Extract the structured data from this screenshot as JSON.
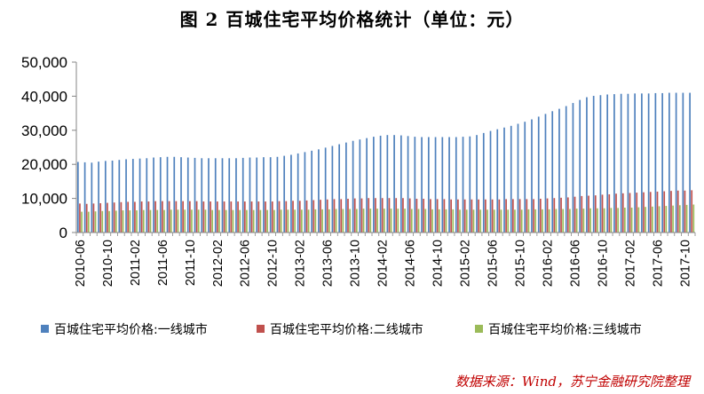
{
  "title": "图 2  百城住宅平均价格统计（单位：元）",
  "source": "数据来源：Wind，苏宁金融研究院整理",
  "chart_data": {
    "type": "bar",
    "ylim": [
      0,
      50000
    ],
    "yticks": [
      0,
      10000,
      20000,
      30000,
      40000,
      50000
    ],
    "ytick_labels": [
      "0",
      "10,000",
      "20,000",
      "30,000",
      "40,000",
      "50,000"
    ],
    "grid": false,
    "legend_position": "bottom",
    "categories": [
      "2010-06",
      "2010-07",
      "2010-08",
      "2010-09",
      "2010-10",
      "2010-11",
      "2010-12",
      "2011-01",
      "2011-02",
      "2011-03",
      "2011-04",
      "2011-05",
      "2011-06",
      "2011-07",
      "2011-08",
      "2011-09",
      "2011-10",
      "2011-11",
      "2011-12",
      "2012-01",
      "2012-02",
      "2012-03",
      "2012-04",
      "2012-05",
      "2012-06",
      "2012-07",
      "2012-08",
      "2012-09",
      "2012-10",
      "2012-11",
      "2012-12",
      "2013-01",
      "2013-02",
      "2013-03",
      "2013-04",
      "2013-05",
      "2013-06",
      "2013-07",
      "2013-08",
      "2013-09",
      "2013-10",
      "2013-11",
      "2013-12",
      "2014-01",
      "2014-02",
      "2014-03",
      "2014-04",
      "2014-05",
      "2014-06",
      "2014-07",
      "2014-08",
      "2014-09",
      "2014-10",
      "2014-11",
      "2014-12",
      "2015-01",
      "2015-02",
      "2015-03",
      "2015-04",
      "2015-05",
      "2015-06",
      "2015-07",
      "2015-08",
      "2015-09",
      "2015-10",
      "2015-11",
      "2015-12",
      "2016-01",
      "2016-02",
      "2016-03",
      "2016-04",
      "2016-05",
      "2016-06",
      "2016-07",
      "2016-08",
      "2016-09",
      "2016-10",
      "2016-11",
      "2016-12",
      "2017-01",
      "2017-02",
      "2017-03",
      "2017-04",
      "2017-05",
      "2017-06",
      "2017-07",
      "2017-08",
      "2017-09",
      "2017-10",
      "2017-11"
    ],
    "xtick_labels": [
      "2010-06",
      "2010-10",
      "2011-02",
      "2011-06",
      "2011-10",
      "2012-02",
      "2012-06",
      "2012-10",
      "2013-02",
      "2013-06",
      "2013-10",
      "2014-02",
      "2014-06",
      "2014-10",
      "2015-02",
      "2015-06",
      "2015-10",
      "2016-02",
      "2016-06",
      "2016-10",
      "2017-02",
      "2017-06",
      "2017-10"
    ],
    "series": [
      {
        "name": "百城住宅平均价格:一线城市",
        "color": "#4f81bd",
        "values": [
          20700,
          20600,
          20500,
          20800,
          21000,
          21100,
          21300,
          21500,
          21600,
          21700,
          21800,
          22000,
          22100,
          22200,
          22200,
          22100,
          22000,
          21900,
          21800,
          21800,
          21800,
          21800,
          21800,
          21800,
          21900,
          22000,
          22000,
          22100,
          22100,
          22200,
          22500,
          22800,
          23200,
          23600,
          24000,
          24400,
          24900,
          25400,
          25900,
          26400,
          26900,
          27300,
          27700,
          28100,
          28400,
          28600,
          28600,
          28500,
          28300,
          28100,
          28000,
          28000,
          28000,
          28000,
          28000,
          28000,
          28100,
          28200,
          28600,
          29200,
          29800,
          30300,
          30800,
          31300,
          31900,
          32500,
          33200,
          34000,
          34800,
          35600,
          36300,
          37100,
          38000,
          38900,
          39700,
          40100,
          40300,
          40500,
          40600,
          40700,
          40700,
          40800,
          40800,
          40800,
          40900,
          40900,
          41000,
          41000,
          41000,
          41000
        ]
      },
      {
        "name": "百城住宅平均价格:二线城市",
        "color": "#c0504d",
        "values": [
          8500,
          8400,
          8500,
          8600,
          8700,
          8800,
          8900,
          9000,
          9000,
          9100,
          9100,
          9200,
          9200,
          9200,
          9200,
          9200,
          9200,
          9200,
          9100,
          9100,
          9100,
          9100,
          9100,
          9100,
          9100,
          9100,
          9100,
          9100,
          9100,
          9200,
          9200,
          9300,
          9300,
          9400,
          9500,
          9600,
          9700,
          9800,
          9800,
          9900,
          10000,
          10000,
          10100,
          10100,
          10100,
          10100,
          10100,
          10100,
          10000,
          9900,
          9900,
          9800,
          9800,
          9800,
          9700,
          9700,
          9700,
          9700,
          9700,
          9700,
          9700,
          9700,
          9800,
          9800,
          9800,
          9800,
          9800,
          9900,
          10000,
          10100,
          10200,
          10300,
          10500,
          10700,
          10800,
          10900,
          11100,
          11200,
          11400,
          11500,
          11600,
          11700,
          11800,
          11900,
          12000,
          12100,
          12200,
          12300,
          12300,
          12400
        ]
      },
      {
        "name": "百城住宅平均价格:三线城市",
        "color": "#9bbb59",
        "values": [
          6100,
          6100,
          6200,
          6300,
          6300,
          6400,
          6500,
          6500,
          6500,
          6600,
          6600,
          6600,
          6600,
          6700,
          6700,
          6700,
          6700,
          6700,
          6700,
          6600,
          6600,
          6600,
          6600,
          6600,
          6600,
          6600,
          6600,
          6600,
          6600,
          6700,
          6700,
          6700,
          6700,
          6700,
          6800,
          6800,
          6800,
          6900,
          6900,
          6900,
          6900,
          7000,
          7000,
          7000,
          7000,
          7000,
          7000,
          7000,
          6900,
          6900,
          6900,
          6800,
          6800,
          6800,
          6800,
          6700,
          6700,
          6700,
          6700,
          6700,
          6700,
          6700,
          6700,
          6700,
          6700,
          6800,
          6800,
          6800,
          6800,
          6900,
          6900,
          6900,
          7000,
          7000,
          7100,
          7100,
          7100,
          7200,
          7200,
          7300,
          7300,
          7400,
          7500,
          7600,
          7700,
          7800,
          7900,
          8000,
          8100,
          8200
        ]
      }
    ]
  }
}
